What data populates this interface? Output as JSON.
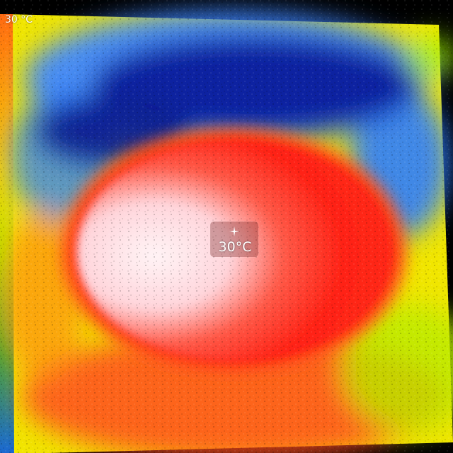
{
  "overlay": {
    "scale_max_label": "30 °C",
    "spot_temperature": "30°C"
  },
  "icons": {
    "crosshair": "crosshair-icon"
  },
  "colors": {
    "cold": "#0d1e8a",
    "cool": "#2a6df0",
    "mid": "#f4f000",
    "warm": "#ff2a16",
    "hot": "#ffd7db"
  }
}
